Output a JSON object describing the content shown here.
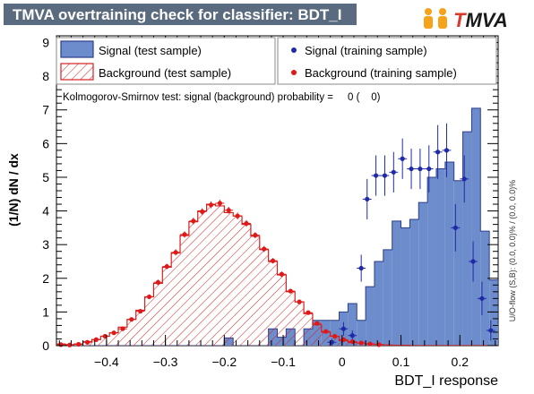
{
  "window": {
    "title": "TMVA overtraining check for classifier: BDT_I",
    "logo_prefix": "T",
    "logo_suffix": "MVA"
  },
  "chart_data": {
    "type": "bar",
    "title": "TMVA overtraining check for classifier: BDT_I",
    "xlabel": "BDT_I response",
    "ylabel": "(1/N) dN / dx",
    "xlim": [
      -0.485,
      0.265
    ],
    "ylim": [
      0,
      9.2
    ],
    "x_ticks": [
      -0.4,
      -0.3,
      -0.2,
      -0.1,
      0,
      0.1,
      0.2
    ],
    "x_tick_labels": [
      "−0.4",
      "−0.3",
      "−0.2",
      "−0.1",
      "0",
      "0.1",
      "0.2"
    ],
    "y_ticks": [
      0,
      1,
      2,
      3,
      4,
      5,
      6,
      7,
      8,
      9
    ],
    "bin_edges_start": -0.485,
    "bin_width": 0.015,
    "series": [
      {
        "name": "Signal (test sample)",
        "style": "filled",
        "color": "#6d8ccb",
        "edge": "#2c3e8c",
        "values": [
          0,
          0,
          0,
          0,
          0,
          0,
          0,
          0,
          0,
          0,
          0,
          0,
          0,
          0,
          0,
          0,
          0,
          0,
          0,
          0.23,
          0,
          0,
          0,
          0,
          0.5,
          0.25,
          0.5,
          0,
          0.5,
          0.75,
          0.75,
          0.75,
          1.0,
          1.25,
          0.75,
          1.75,
          2.5,
          2.85,
          3.7,
          3.5,
          3.75,
          4.25,
          5.0,
          5.25,
          5.45,
          4.9,
          6.35,
          7.05,
          3.4,
          1.95,
          0.65,
          0.35
        ]
      },
      {
        "name": "Background (test sample)",
        "style": "hatched",
        "color": "#d62020",
        "values": [
          0.05,
          0.03,
          0.05,
          0.12,
          0.18,
          0.28,
          0.38,
          0.55,
          0.78,
          1.05,
          1.45,
          1.85,
          2.33,
          2.75,
          3.27,
          3.68,
          4.0,
          4.2,
          4.15,
          3.95,
          3.85,
          3.6,
          3.25,
          2.85,
          2.5,
          2.1,
          1.6,
          1.3,
          0.95,
          0.62,
          0.4,
          0.28,
          0.15,
          0.1,
          0.08,
          0.05,
          0.03,
          0.02,
          0.01,
          0.01,
          0,
          0,
          0,
          0,
          0,
          0,
          0,
          0,
          0,
          0,
          0,
          0
        ]
      },
      {
        "name": "Signal (training sample)",
        "style": "markers",
        "color": "#1f2aa8",
        "points": [
          [
            -0.0175,
            0.1,
            0.1
          ],
          [
            0.0025,
            0.5,
            0.2
          ],
          [
            0.0175,
            0.3,
            0.15
          ],
          [
            0.0325,
            2.3,
            0.4
          ],
          [
            0.0425,
            4.35,
            0.6
          ],
          [
            0.0575,
            5.05,
            0.6
          ],
          [
            0.0725,
            5.05,
            0.6
          ],
          [
            0.0875,
            5.15,
            0.6
          ],
          [
            0.1025,
            5.55,
            0.6
          ],
          [
            0.1175,
            5.25,
            0.6
          ],
          [
            0.1325,
            5.25,
            0.6
          ],
          [
            0.1475,
            5.25,
            0.7
          ],
          [
            0.1625,
            5.75,
            0.8
          ],
          [
            0.1775,
            5.8,
            0.8
          ],
          [
            0.1925,
            3.5,
            0.7
          ],
          [
            0.2075,
            4.95,
            0.7
          ],
          [
            0.2225,
            2.5,
            0.6
          ],
          [
            0.2375,
            1.4,
            0.5
          ],
          [
            0.2525,
            0.45,
            0.3
          ]
        ]
      },
      {
        "name": "Background (training sample)",
        "style": "markers",
        "color": "#e01818",
        "points": [
          [
            -0.4775,
            0.03,
            0.02
          ],
          [
            -0.4625,
            0.02,
            0.02
          ],
          [
            -0.4475,
            0.04,
            0.03
          ],
          [
            -0.4325,
            0.1,
            0.03
          ],
          [
            -0.4175,
            0.18,
            0.04
          ],
          [
            -0.4025,
            0.28,
            0.04
          ],
          [
            -0.3875,
            0.38,
            0.05
          ],
          [
            -0.3725,
            0.5,
            0.05
          ],
          [
            -0.3575,
            0.78,
            0.06
          ],
          [
            -0.3425,
            1.02,
            0.06
          ],
          [
            -0.3275,
            1.45,
            0.07
          ],
          [
            -0.3125,
            1.88,
            0.08
          ],
          [
            -0.2975,
            2.35,
            0.08
          ],
          [
            -0.2825,
            2.77,
            0.09
          ],
          [
            -0.2675,
            3.3,
            0.09
          ],
          [
            -0.2525,
            3.7,
            0.1
          ],
          [
            -0.2375,
            3.98,
            0.1
          ],
          [
            -0.2225,
            4.18,
            0.1
          ],
          [
            -0.2075,
            4.23,
            0.1
          ],
          [
            -0.1925,
            4.02,
            0.1
          ],
          [
            -0.1775,
            3.85,
            0.1
          ],
          [
            -0.1625,
            3.63,
            0.1
          ],
          [
            -0.1475,
            3.28,
            0.09
          ],
          [
            -0.1325,
            2.87,
            0.09
          ],
          [
            -0.1175,
            2.52,
            0.08
          ],
          [
            -0.1025,
            2.12,
            0.08
          ],
          [
            -0.0875,
            1.62,
            0.07
          ],
          [
            -0.0725,
            1.3,
            0.07
          ],
          [
            -0.0575,
            0.98,
            0.06
          ],
          [
            -0.0425,
            0.66,
            0.05
          ],
          [
            -0.0275,
            0.42,
            0.05
          ],
          [
            -0.0125,
            0.28,
            0.04
          ],
          [
            0.0025,
            0.18,
            0.03
          ],
          [
            0.0175,
            0.12,
            0.03
          ],
          [
            0.0325,
            0.08,
            0.02
          ],
          [
            0.0475,
            0.05,
            0.02
          ],
          [
            0.0625,
            0.03,
            0.02
          ]
        ]
      }
    ],
    "legend": {
      "placement": "top",
      "entries": [
        "Signal (test sample)",
        "Background (test sample)",
        "Signal (training sample)",
        "Background (training sample)"
      ]
    },
    "annotation": "Kolmogorov-Smirnov test: signal (background) probability =     0 (    0)",
    "side_note": "U/O-flow (S,B): (0.0, 0.0)% / (0.0, 0.0)%"
  }
}
